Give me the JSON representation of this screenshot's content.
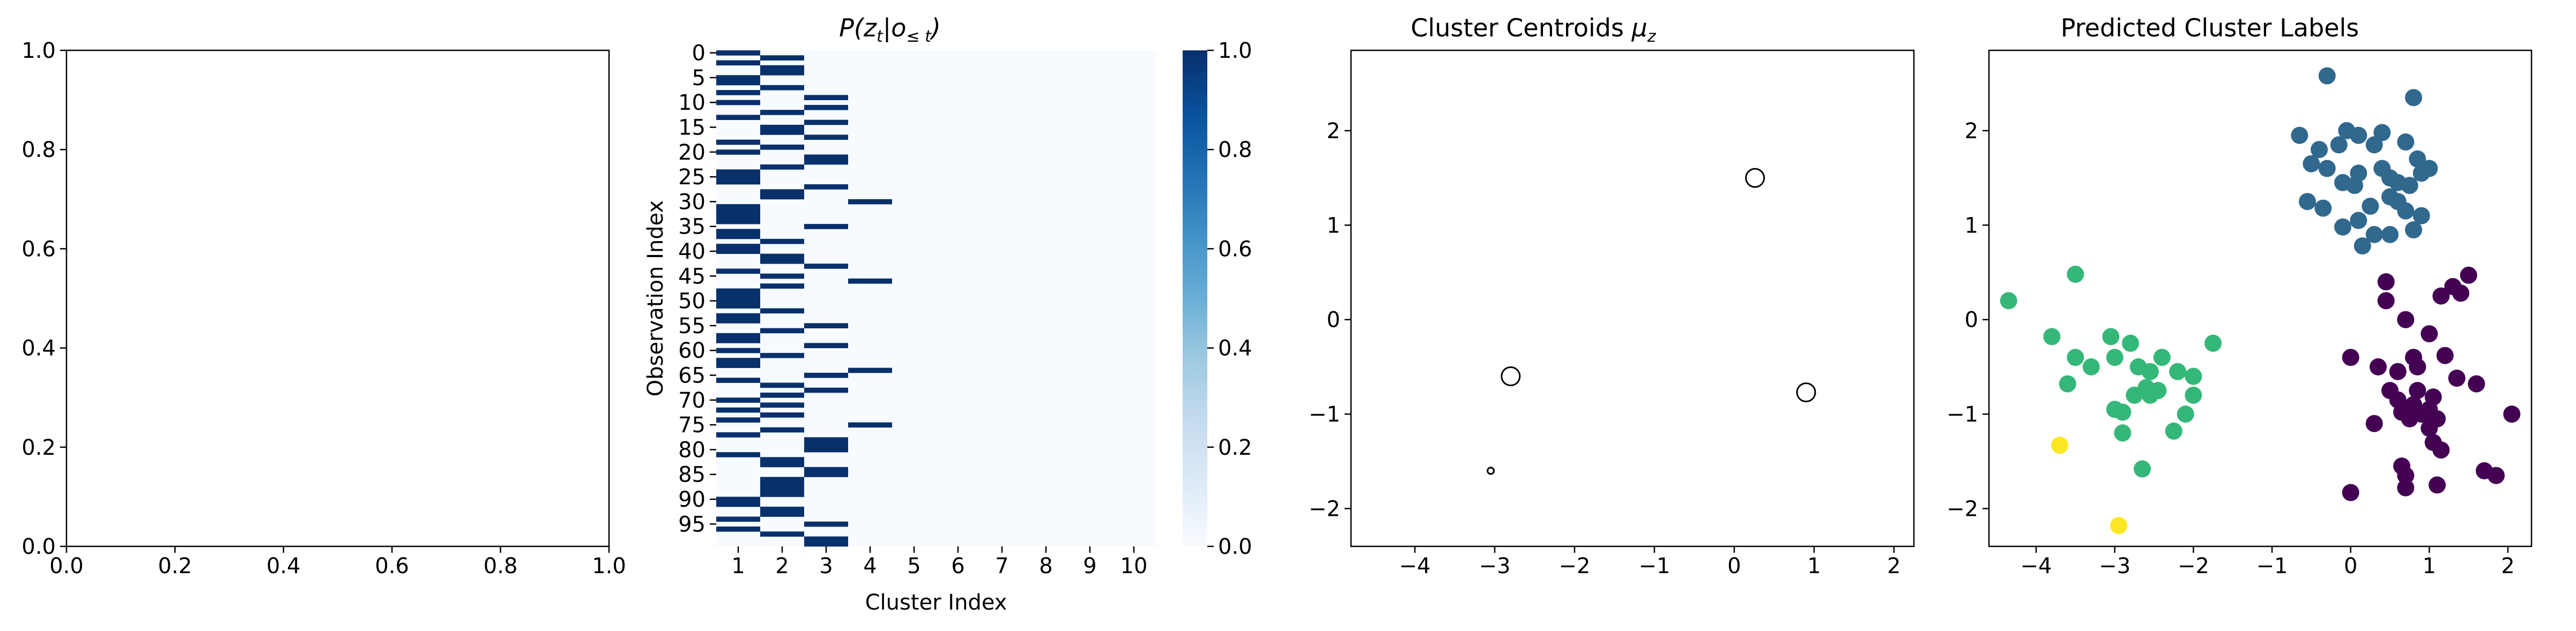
{
  "chart_data": [
    {
      "type": "line",
      "title": "",
      "xlabel": "",
      "ylabel": "",
      "xlim": [
        0,
        1
      ],
      "ylim": [
        0,
        1
      ],
      "xticks": [
        "0.0",
        "0.2",
        "0.4",
        "0.6",
        "0.8",
        "1.0"
      ],
      "yticks": [
        "0.0",
        "0.2",
        "0.4",
        "0.6",
        "0.8",
        "1.0"
      ],
      "series": []
    },
    {
      "type": "heatmap",
      "title_parts": {
        "a": "P(z",
        "sub1": "t",
        "b": "|o",
        "sub2": "≤ t",
        "c": ")"
      },
      "xlabel": "Cluster Index",
      "ylabel": "Observation Index",
      "xticks": [
        "1",
        "2",
        "3",
        "4",
        "5",
        "6",
        "7",
        "8",
        "9",
        "10"
      ],
      "yticks": [
        "0",
        "5",
        "10",
        "15",
        "20",
        "25",
        "30",
        "35",
        "40",
        "45",
        "50",
        "55",
        "60",
        "65",
        "70",
        "75",
        "80",
        "85",
        "90",
        "95"
      ],
      "n_rows": 100,
      "n_cols": 10,
      "colormap": "Blues",
      "colorbar_ticks": [
        "0.0",
        "0.2",
        "0.4",
        "0.6",
        "0.8",
        "1.0"
      ],
      "vmin": 0,
      "vmax": 1,
      "assigned_cluster": [
        1,
        2,
        1,
        2,
        2,
        1,
        1,
        2,
        1,
        3,
        1,
        3,
        2,
        1,
        3,
        2,
        2,
        3,
        1,
        2,
        1,
        3,
        3,
        2,
        1,
        1,
        1,
        3,
        2,
        2,
        4,
        1,
        1,
        1,
        1,
        3,
        1,
        1,
        2,
        1,
        1,
        2,
        2,
        3,
        1,
        2,
        4,
        2,
        1,
        1,
        1,
        1,
        2,
        1,
        1,
        3,
        2,
        1,
        1,
        3,
        1,
        2,
        1,
        1,
        4,
        3,
        1,
        2,
        3,
        2,
        1,
        2,
        1,
        2,
        1,
        4,
        2,
        1,
        3,
        3,
        3,
        1,
        2,
        2,
        3,
        3,
        2,
        2,
        2,
        2,
        1,
        1,
        2,
        2,
        1,
        3,
        1,
        2,
        3,
        3
      ]
    },
    {
      "type": "scatter",
      "title_parts": {
        "a": "Cluster Centroids ",
        "mu": "μ",
        "sub": "z"
      },
      "xlabel": "",
      "ylabel": "",
      "xlim": [
        -4.8,
        2.25
      ],
      "ylim": [
        -2.4,
        2.85
      ],
      "xticks": [
        "−4",
        "−3",
        "−2",
        "−1",
        "0",
        "1",
        "2"
      ],
      "yticks": [
        "−2",
        "−1",
        "0",
        "1",
        "2"
      ],
      "points": [
        {
          "x": 0.26,
          "y": 1.5,
          "size": "large"
        },
        {
          "x": -2.8,
          "y": -0.6,
          "size": "large"
        },
        {
          "x": 0.9,
          "y": -0.77,
          "size": "large"
        },
        {
          "x": -3.05,
          "y": -1.6,
          "size": "small"
        }
      ]
    },
    {
      "type": "scatter",
      "title": "Predicted Cluster Labels",
      "xlabel": "",
      "ylabel": "",
      "xlim": [
        -4.6,
        2.3
      ],
      "ylim": [
        -2.4,
        2.85
      ],
      "xticks": [
        "−4",
        "−3",
        "−2",
        "−1",
        "0",
        "1",
        "2"
      ],
      "yticks": [
        "−2",
        "−1",
        "0",
        "1",
        "2"
      ],
      "series": [
        {
          "color": "#31688e",
          "points": [
            [
              -0.3,
              2.58
            ],
            [
              0.8,
              2.35
            ],
            [
              -0.65,
              1.95
            ],
            [
              -0.05,
              2.0
            ],
            [
              0.1,
              1.95
            ],
            [
              0.4,
              1.98
            ],
            [
              -0.4,
              1.8
            ],
            [
              -0.15,
              1.85
            ],
            [
              0.3,
              1.85
            ],
            [
              0.7,
              1.88
            ],
            [
              -0.5,
              1.65
            ],
            [
              -0.3,
              1.6
            ],
            [
              0.1,
              1.55
            ],
            [
              0.4,
              1.6
            ],
            [
              0.85,
              1.7
            ],
            [
              1.0,
              1.6
            ],
            [
              -0.1,
              1.45
            ],
            [
              0.05,
              1.42
            ],
            [
              0.5,
              1.5
            ],
            [
              0.6,
              1.45
            ],
            [
              0.9,
              1.55
            ],
            [
              0.75,
              1.42
            ],
            [
              0.5,
              1.3
            ],
            [
              0.6,
              1.25
            ],
            [
              -0.55,
              1.25
            ],
            [
              -0.35,
              1.18
            ],
            [
              0.25,
              1.2
            ],
            [
              0.7,
              1.15
            ],
            [
              0.9,
              1.1
            ],
            [
              0.1,
              1.05
            ],
            [
              0.8,
              0.95
            ],
            [
              -0.1,
              0.98
            ],
            [
              0.3,
              0.9
            ],
            [
              0.5,
              0.9
            ],
            [
              0.15,
              0.78
            ]
          ]
        },
        {
          "color": "#35b779",
          "points": [
            [
              -4.35,
              0.2
            ],
            [
              -3.5,
              0.48
            ],
            [
              -3.8,
              -0.18
            ],
            [
              -3.05,
              -0.18
            ],
            [
              -2.8,
              -0.25
            ],
            [
              -3.5,
              -0.4
            ],
            [
              -3.0,
              -0.4
            ],
            [
              -2.4,
              -0.4
            ],
            [
              -1.75,
              -0.25
            ],
            [
              -3.3,
              -0.5
            ],
            [
              -2.7,
              -0.5
            ],
            [
              -2.55,
              -0.55
            ],
            [
              -2.2,
              -0.55
            ],
            [
              -2.0,
              -0.6
            ],
            [
              -3.6,
              -0.68
            ],
            [
              -2.6,
              -0.72
            ],
            [
              -2.45,
              -0.75
            ],
            [
              -2.75,
              -0.8
            ],
            [
              -2.55,
              -0.8
            ],
            [
              -2.0,
              -0.8
            ],
            [
              -3.0,
              -0.95
            ],
            [
              -2.9,
              -0.98
            ],
            [
              -2.1,
              -1.0
            ],
            [
              -2.9,
              -1.2
            ],
            [
              -2.25,
              -1.18
            ],
            [
              -2.65,
              -1.58
            ]
          ]
        },
        {
          "color": "#440154",
          "points": [
            [
              1.5,
              0.47
            ],
            [
              0.45,
              0.4
            ],
            [
              1.3,
              0.35
            ],
            [
              0.45,
              0.2
            ],
            [
              1.15,
              0.25
            ],
            [
              1.4,
              0.28
            ],
            [
              0.7,
              0.0
            ],
            [
              1.0,
              -0.15
            ],
            [
              0.0,
              -0.4
            ],
            [
              0.8,
              -0.4
            ],
            [
              1.2,
              -0.38
            ],
            [
              0.35,
              -0.5
            ],
            [
              0.85,
              -0.5
            ],
            [
              0.6,
              -0.55
            ],
            [
              1.35,
              -0.62
            ],
            [
              1.6,
              -0.68
            ],
            [
              0.5,
              -0.75
            ],
            [
              0.85,
              -0.75
            ],
            [
              1.05,
              -0.82
            ],
            [
              0.6,
              -0.85
            ],
            [
              0.8,
              -0.9
            ],
            [
              1.0,
              -0.95
            ],
            [
              0.65,
              -0.98
            ],
            [
              0.9,
              -1.0
            ],
            [
              1.0,
              -1.0
            ],
            [
              2.05,
              -1.0
            ],
            [
              0.75,
              -1.05
            ],
            [
              1.1,
              -1.05
            ],
            [
              0.3,
              -1.1
            ],
            [
              1.0,
              -1.15
            ],
            [
              1.05,
              -1.3
            ],
            [
              1.15,
              -1.38
            ],
            [
              0.65,
              -1.55
            ],
            [
              0.7,
              -1.65
            ],
            [
              1.7,
              -1.6
            ],
            [
              1.85,
              -1.65
            ],
            [
              1.1,
              -1.75
            ],
            [
              0.7,
              -1.78
            ],
            [
              0.0,
              -1.83
            ]
          ]
        },
        {
          "color": "#fde725",
          "points": [
            [
              -3.7,
              -1.33
            ],
            [
              -2.95,
              -2.18
            ]
          ]
        }
      ]
    }
  ]
}
